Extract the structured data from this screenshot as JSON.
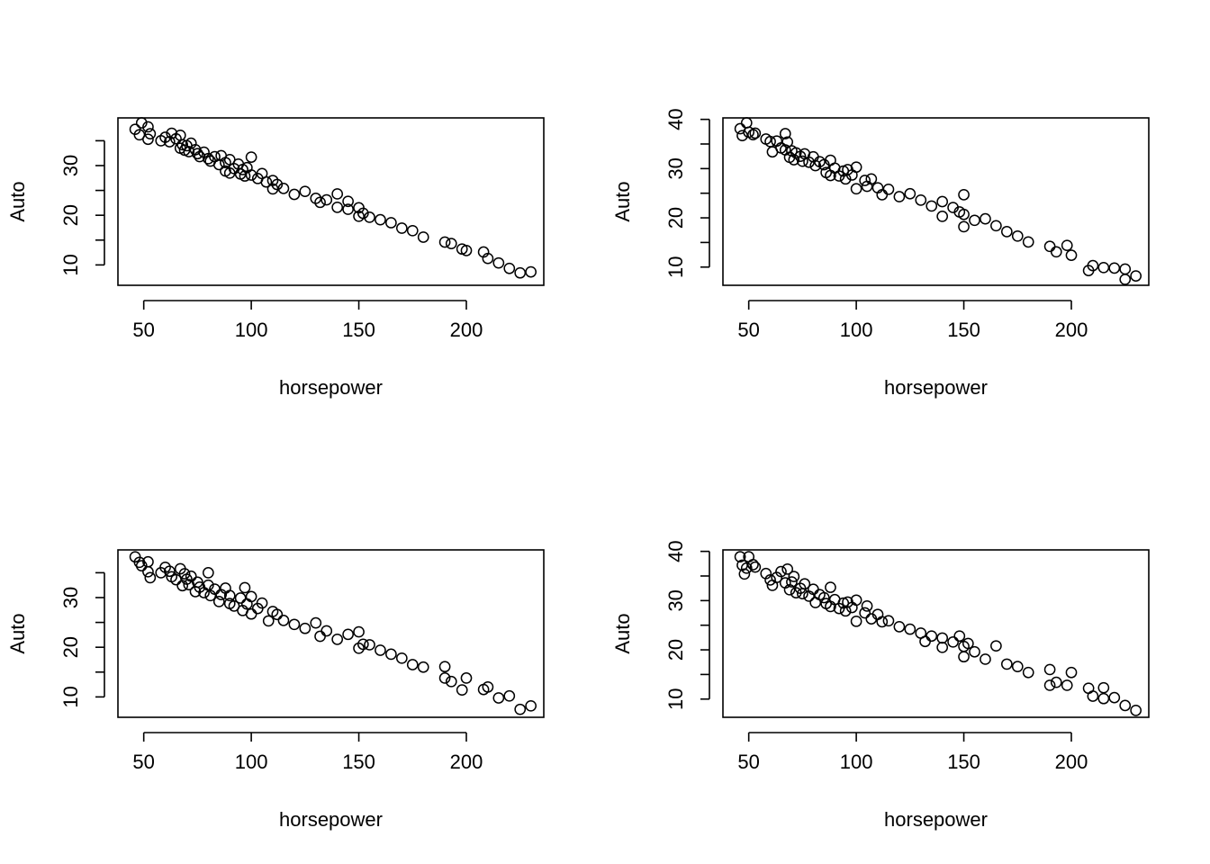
{
  "figure": {
    "background": "#ffffff",
    "foreground": "#000000"
  },
  "chart_data": [
    {
      "type": "scatter",
      "xlabel": "horsepower",
      "ylabel": "Auto",
      "xlim": [
        38,
        236
      ],
      "ylim": [
        5.9,
        39.6
      ],
      "xticks": [
        50,
        100,
        150,
        200
      ],
      "xtick_labels": [
        "50",
        "100",
        "150",
        "200"
      ],
      "yticks": [
        10,
        15,
        20,
        25,
        30,
        35
      ],
      "ytick_labels": [
        "10",
        "",
        "20",
        "",
        "30",
        ""
      ],
      "grid": false,
      "marker": "open-circle",
      "series": [
        {
          "x": [
            46,
            48,
            49,
            52,
            52,
            53,
            58,
            60,
            62,
            63,
            65,
            67,
            67,
            68,
            69,
            70,
            71,
            72,
            74,
            75,
            76,
            78,
            80,
            81,
            83,
            85,
            86,
            88,
            88,
            90,
            90,
            92,
            94,
            95,
            96,
            97,
            98,
            100,
            100,
            103,
            105,
            107,
            110,
            110,
            112,
            115,
            120,
            125,
            130,
            132,
            135,
            140,
            140,
            145,
            145,
            150,
            150,
            152,
            155,
            160,
            165,
            170,
            175,
            180,
            190,
            193,
            198,
            200,
            208,
            210,
            215,
            220,
            225,
            230
          ],
          "y": [
            37.3,
            36.2,
            38.6,
            35.3,
            37.8,
            36.4,
            35,
            35.7,
            34.8,
            36.5,
            35.4,
            36.1,
            33.5,
            34.2,
            33.1,
            34,
            32.8,
            34.5,
            33.2,
            32.4,
            31.8,
            32.7,
            31.4,
            30.9,
            31.8,
            30.2,
            32,
            30.6,
            28.9,
            31.2,
            28.5,
            29.4,
            30.3,
            28.3,
            29.2,
            27.9,
            29.6,
            28.1,
            31.7,
            27.4,
            28.4,
            26.7,
            27,
            25.3,
            26.2,
            25.4,
            24.2,
            24.8,
            23.4,
            22.6,
            23.1,
            21.6,
            24.3,
            22.8,
            21.2,
            21.5,
            19.8,
            20.4,
            19.6,
            19.1,
            18.5,
            17.4,
            16.9,
            15.6,
            14.6,
            14.3,
            13.2,
            12.9,
            12.6,
            11.3,
            10.4,
            9.3,
            8.4,
            8.6
          ]
        }
      ]
    },
    {
      "type": "scatter",
      "xlabel": "horsepower",
      "ylabel": "Auto",
      "xlim": [
        38,
        236
      ],
      "ylim": [
        6.3,
        40.3
      ],
      "xticks": [
        50,
        100,
        150,
        200
      ],
      "xtick_labels": [
        "50",
        "100",
        "150",
        "200"
      ],
      "yticks": [
        10,
        15,
        20,
        25,
        30,
        35,
        40
      ],
      "ytick_labels": [
        "10",
        "",
        "20",
        "",
        "30",
        "",
        "40"
      ],
      "grid": false,
      "marker": "open-circle",
      "series": [
        {
          "x": [
            46,
            47,
            49,
            50,
            52,
            53,
            58,
            60,
            61,
            63,
            65,
            67,
            67,
            68,
            69,
            70,
            71,
            72,
            74,
            75,
            76,
            78,
            80,
            81,
            83,
            85,
            86,
            88,
            88,
            90,
            92,
            94,
            95,
            96,
            98,
            100,
            100,
            104,
            105,
            107,
            110,
            112,
            115,
            120,
            125,
            130,
            135,
            140,
            140,
            145,
            148,
            150,
            150,
            150,
            155,
            160,
            165,
            170,
            175,
            180,
            190,
            193,
            198,
            200,
            208,
            210,
            215,
            220,
            225,
            225,
            230
          ],
          "y": [
            38.1,
            36.7,
            39.3,
            37.4,
            36.9,
            37.2,
            36,
            35.5,
            33.4,
            35.6,
            34.2,
            37.1,
            33.8,
            35.4,
            32.3,
            33.6,
            31.8,
            33.2,
            32.5,
            31.5,
            33,
            31.3,
            32.4,
            30.6,
            31.4,
            30.8,
            29.2,
            31.7,
            28.6,
            30.1,
            28.5,
            29.5,
            27.9,
            29.8,
            28.7,
            30.3,
            25.9,
            27.6,
            26.4,
            27.9,
            26.1,
            24.7,
            25.8,
            24.3,
            24.9,
            23.6,
            22.4,
            23.3,
            20.3,
            22.1,
            21.2,
            24.7,
            18.2,
            20.7,
            19.5,
            19.8,
            18.4,
            17.2,
            16.3,
            15.1,
            14.2,
            13.1,
            14.4,
            12.4,
            9.3,
            10.3,
            9.9,
            9.8,
            9.6,
            7.5,
            8.2
          ]
        }
      ]
    },
    {
      "type": "scatter",
      "xlabel": "horsepower",
      "ylabel": "Auto",
      "xlim": [
        38,
        236
      ],
      "ylim": [
        5.9,
        39.6
      ],
      "xticks": [
        50,
        100,
        150,
        200
      ],
      "xtick_labels": [
        "50",
        "100",
        "150",
        "200"
      ],
      "yticks": [
        10,
        15,
        20,
        25,
        30,
        35
      ],
      "ytick_labels": [
        "10",
        "",
        "20",
        "",
        "30",
        ""
      ],
      "grid": false,
      "marker": "open-circle",
      "series": [
        {
          "x": [
            46,
            48,
            49,
            52,
            52,
            53,
            58,
            60,
            62,
            63,
            65,
            67,
            68,
            69,
            70,
            71,
            72,
            74,
            75,
            76,
            78,
            80,
            80,
            81,
            83,
            85,
            86,
            88,
            90,
            90,
            92,
            95,
            96,
            97,
            98,
            100,
            100,
            103,
            105,
            108,
            110,
            112,
            115,
            120,
            125,
            130,
            132,
            135,
            140,
            145,
            150,
            150,
            152,
            155,
            160,
            165,
            170,
            175,
            180,
            190,
            190,
            193,
            198,
            200,
            208,
            210,
            215,
            220,
            225,
            230
          ],
          "y": [
            38.2,
            37.1,
            36.4,
            35.2,
            37.2,
            34,
            35,
            36.1,
            35.3,
            34.2,
            33.6,
            35.8,
            32.4,
            34.8,
            33.7,
            32.6,
            34.3,
            31.2,
            33.1,
            32.1,
            31,
            35,
            32.5,
            30.4,
            31.7,
            29.2,
            30.6,
            31.9,
            28.8,
            30.4,
            28.3,
            29.9,
            27.4,
            32,
            28.7,
            30.2,
            26.7,
            27.8,
            28.9,
            25.3,
            27.2,
            26.6,
            25.4,
            24.6,
            23.8,
            24.9,
            22.2,
            23.3,
            21.6,
            22.6,
            23.1,
            19.8,
            20.6,
            20.5,
            19.4,
            18.6,
            17.8,
            16.5,
            16,
            16.1,
            13.8,
            13.1,
            11.4,
            13.8,
            11.5,
            12,
            9.8,
            10.2,
            7.5,
            8.2
          ]
        }
      ]
    },
    {
      "type": "scatter",
      "xlabel": "horsepower",
      "ylabel": "Auto",
      "xlim": [
        38,
        236
      ],
      "ylim": [
        6.3,
        40.3
      ],
      "xticks": [
        50,
        100,
        150,
        200
      ],
      "xtick_labels": [
        "50",
        "100",
        "150",
        "200"
      ],
      "yticks": [
        10,
        15,
        20,
        25,
        30,
        35,
        40
      ],
      "ytick_labels": [
        "10",
        "",
        "20",
        "",
        "30",
        "",
        "40"
      ],
      "grid": false,
      "marker": "open-circle",
      "series": [
        {
          "x": [
            46,
            47,
            48,
            49,
            50,
            52,
            53,
            58,
            60,
            61,
            63,
            65,
            67,
            68,
            69,
            70,
            71,
            72,
            74,
            75,
            76,
            78,
            80,
            81,
            83,
            85,
            86,
            88,
            88,
            90,
            92,
            94,
            95,
            96,
            98,
            100,
            100,
            104,
            105,
            107,
            110,
            112,
            115,
            120,
            125,
            130,
            132,
            135,
            140,
            140,
            145,
            148,
            150,
            150,
            152,
            155,
            160,
            165,
            170,
            175,
            180,
            190,
            190,
            193,
            198,
            200,
            208,
            210,
            215,
            215,
            220,
            225,
            230
          ],
          "y": [
            38.9,
            37.2,
            35.4,
            36.6,
            38.9,
            37.3,
            36.8,
            35.5,
            34.2,
            33.1,
            34.7,
            35.9,
            33.6,
            36.4,
            32.2,
            33.8,
            34.9,
            31.6,
            32.5,
            31.4,
            33.4,
            30.9,
            32.3,
            29.6,
            31.2,
            30.6,
            29.4,
            32.7,
            28.8,
            30.2,
            28.4,
            29.5,
            27.9,
            29.7,
            28.6,
            30.1,
            25.8,
            27.5,
            28.9,
            26.3,
            27.2,
            25.7,
            25.9,
            24.7,
            24.2,
            23.4,
            21.7,
            22.8,
            22.4,
            20.5,
            21.6,
            22.8,
            20.7,
            18.6,
            21.3,
            19.6,
            18.1,
            20.8,
            17.1,
            16.6,
            15.4,
            16,
            12.8,
            13.4,
            12.8,
            15.4,
            12.2,
            10.6,
            12.3,
            10.1,
            10.3,
            8.7,
            7.7
          ]
        }
      ]
    }
  ]
}
